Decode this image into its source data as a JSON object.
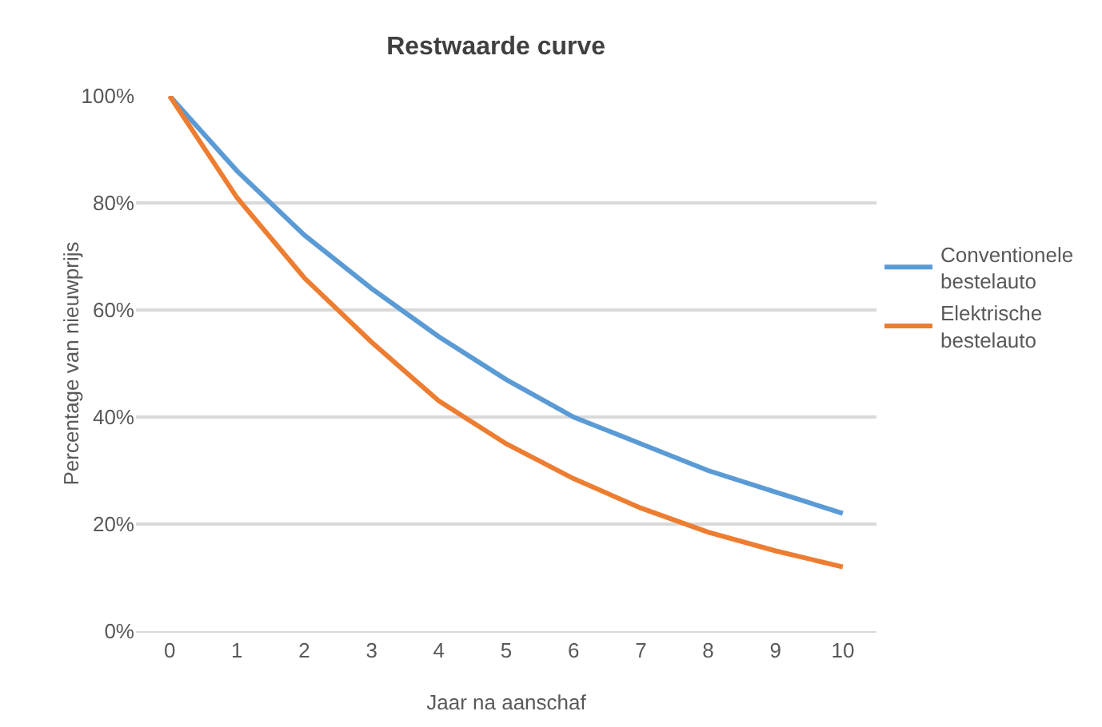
{
  "chart_data": {
    "type": "line",
    "title": "Restwaarde curve",
    "xlabel": "Jaar na aanschaf",
    "ylabel": "Percentage van nieuwprijs",
    "categories": [
      "0",
      "1",
      "2",
      "3",
      "4",
      "5",
      "6",
      "7",
      "8",
      "9",
      "10"
    ],
    "series": [
      {
        "name": "Conventionele bestelauto",
        "color": "#5b9bd5",
        "values": [
          100,
          86,
          74,
          64,
          55,
          47,
          40,
          35,
          30,
          26,
          22
        ]
      },
      {
        "name": "Elektrische bestelauto",
        "color": "#ed7d31",
        "values": [
          100,
          81,
          66,
          54,
          43,
          35,
          28.5,
          23,
          18.5,
          15,
          12
        ]
      }
    ],
    "ylim": [
      0,
      100
    ],
    "yticks": [
      {
        "value": 0,
        "label": "0%"
      },
      {
        "value": 20,
        "label": "20%"
      },
      {
        "value": 40,
        "label": "40%"
      },
      {
        "value": 60,
        "label": "60%"
      },
      {
        "value": 80,
        "label": "80%"
      },
      {
        "value": 100,
        "label": "100%"
      }
    ],
    "grid": "y",
    "legend": "right",
    "marker": "none",
    "line_style": "solid"
  }
}
